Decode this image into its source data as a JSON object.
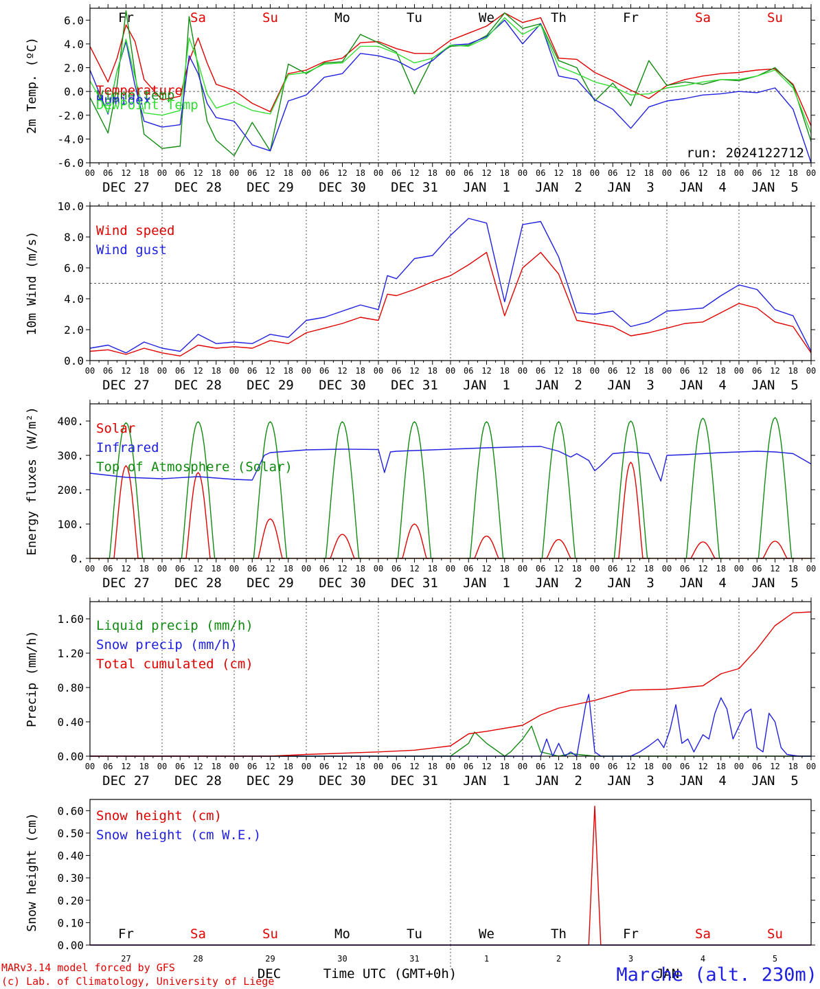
{
  "days": [
    "DEC 27",
    "DEC 28",
    "DEC 29",
    "DEC 30",
    "DEC 31",
    "JAN  1",
    "JAN  2",
    "JAN  3",
    "JAN  4",
    "JAN  5"
  ],
  "hour_ticks": [
    "00",
    "06",
    "12",
    "18"
  ],
  "hour_tick_end": "00",
  "weekdays": [
    {
      "label": "Fr",
      "color": "#000000"
    },
    {
      "label": "Sa",
      "color": "#e00000"
    },
    {
      "label": "Su",
      "color": "#e00000"
    },
    {
      "label": "Mo",
      "color": "#000000"
    },
    {
      "label": "Tu",
      "color": "#000000"
    },
    {
      "label": "We",
      "color": "#000000"
    },
    {
      "label": "Th",
      "color": "#000000"
    },
    {
      "label": "Fr",
      "color": "#000000"
    },
    {
      "label": "Sa",
      "color": "#e00000"
    },
    {
      "label": "Su",
      "color": "#e00000"
    }
  ],
  "bottom_day_numbers": [
    "27",
    "28",
    "29",
    "30",
    "31",
    "1",
    "2",
    "3",
    "4",
    "5"
  ],
  "bottom_month_dec": "DEC",
  "bottom_month_jan": "JAN",
  "x_axis_title": "Time UTC (GMT+0h)",
  "footer": {
    "line1": "MARv3.14 model forced by GFS",
    "line2": "(c) Lab. of Climatology, University of Liege",
    "station": "Marche (alt. 230m)"
  },
  "colors": {
    "red": "#e00000",
    "green": "#108a10",
    "blue": "#2020e0",
    "lightgreen": "#33dd33"
  },
  "chart_data": [
    {
      "type": "line",
      "ylabel": "2m Temp. (ºC)",
      "ylim": [
        -6,
        7
      ],
      "yticks": [
        "-6.0",
        "-4.0",
        "-2.0",
        "0.0",
        "2.0",
        "4.0",
        "6.0"
      ],
      "ytick_values": [
        -6,
        -4,
        -2,
        0,
        2,
        4,
        6
      ],
      "ref_line": 0,
      "annotation": "run: 2024122712",
      "x_hours": [
        0,
        6,
        9,
        12,
        15,
        18,
        24,
        30,
        33,
        36,
        39,
        42,
        48,
        54,
        60,
        66,
        72,
        78,
        84,
        90,
        96,
        102,
        108,
        114,
        120,
        126,
        132,
        138,
        144,
        150,
        156,
        162,
        168,
        174,
        180,
        186,
        192,
        198,
        204,
        210,
        216,
        222,
        228,
        234,
        240
      ],
      "series": [
        {
          "name": "Temperature",
          "color": "red",
          "values": [
            3.8,
            0.8,
            2.8,
            5.6,
            4.2,
            1.0,
            -0.7,
            -0.4,
            2.6,
            4.5,
            2.4,
            0.6,
            0.1,
            -1.0,
            -1.7,
            1.5,
            1.8,
            2.5,
            2.8,
            4.1,
            4.2,
            3.6,
            3.2,
            3.2,
            4.3,
            4.9,
            5.5,
            6.6,
            5.8,
            6.2,
            2.8,
            2.7,
            1.6,
            0.9,
            0.1,
            -0.6,
            0.5,
            1.0,
            1.3,
            1.5,
            1.6,
            1.8,
            1.9,
            0.6,
            -2.9
          ]
        },
        {
          "name": "Vigne temp",
          "color": "green",
          "values": [
            -0.5,
            -3.5,
            0.5,
            6.8,
            1.5,
            -3.6,
            -4.8,
            -4.6,
            6.3,
            2.0,
            -2.5,
            -4.1,
            -5.4,
            -2.6,
            -5.0,
            2.3,
            1.5,
            2.4,
            2.5,
            4.8,
            4.1,
            3.3,
            -0.2,
            2.8,
            3.8,
            3.9,
            4.7,
            6.6,
            5.3,
            5.7,
            2.6,
            2.0,
            -0.8,
            0.7,
            -1.2,
            2.6,
            0.5,
            0.8,
            0.6,
            1.0,
            0.9,
            1.3,
            2.0,
            0.5,
            -4.2
          ]
        },
        {
          "name": "Humidex",
          "color": "blue",
          "values": [
            1.8,
            -1.9,
            1.7,
            4.2,
            0.5,
            -2.5,
            -3.0,
            -2.8,
            3.0,
            1.5,
            -1.0,
            -2.2,
            -2.5,
            -4.5,
            -5.0,
            -0.8,
            -0.3,
            1.2,
            1.5,
            3.2,
            3.0,
            2.6,
            1.8,
            2.6,
            3.9,
            4.0,
            4.6,
            6.0,
            4.0,
            5.7,
            1.3,
            1.0,
            -0.7,
            -1.5,
            -3.1,
            -1.3,
            -0.8,
            -0.6,
            -0.3,
            -0.2,
            0.0,
            -0.1,
            0.3,
            -1.5,
            -6.0
          ]
        },
        {
          "name": "DewPoint Temp",
          "color": "lightgreen",
          "values": [
            0.9,
            -1.8,
            1.7,
            4.4,
            1.2,
            -1.8,
            -2.0,
            -1.6,
            4.5,
            2.4,
            -0.2,
            -1.4,
            -0.9,
            -1.6,
            -1.9,
            1.4,
            1.6,
            2.3,
            2.4,
            3.8,
            3.8,
            3.2,
            2.4,
            2.8,
            3.9,
            3.8,
            4.5,
            6.2,
            4.8,
            5.6,
            2.1,
            1.5,
            0.8,
            0.4,
            -0.3,
            -0.2,
            0.3,
            0.5,
            0.8,
            1.0,
            1.0,
            1.3,
            1.8,
            0.3,
            -3.5
          ]
        }
      ]
    },
    {
      "type": "line",
      "ylabel": "10m Wind (m/s)",
      "ylim": [
        0,
        10
      ],
      "yticks": [
        "0.0",
        "2.0",
        "4.0",
        "6.0",
        "8.0",
        "10.0"
      ],
      "ytick_values": [
        0,
        2,
        4,
        6,
        8,
        10
      ],
      "ref_line": 5,
      "x_hours": [
        0,
        6,
        12,
        18,
        24,
        30,
        36,
        42,
        48,
        54,
        60,
        66,
        72,
        78,
        84,
        90,
        96,
        99,
        102,
        108,
        114,
        120,
        126,
        132,
        138,
        144,
        150,
        156,
        162,
        168,
        174,
        180,
        186,
        192,
        198,
        204,
        210,
        216,
        222,
        228,
        234,
        240
      ],
      "series": [
        {
          "name": "Wind speed",
          "color": "red",
          "values": [
            0.6,
            0.7,
            0.4,
            0.8,
            0.5,
            0.3,
            1.0,
            0.8,
            0.9,
            0.8,
            1.3,
            1.1,
            1.8,
            2.1,
            2.4,
            2.8,
            2.6,
            4.3,
            4.2,
            4.6,
            5.1,
            5.5,
            6.2,
            7.0,
            2.9,
            6.0,
            7.0,
            5.6,
            2.6,
            2.4,
            2.2,
            1.6,
            1.8,
            2.1,
            2.4,
            2.5,
            3.1,
            3.7,
            3.4,
            2.5,
            2.2,
            0.5
          ]
        },
        {
          "name": "Wind gust",
          "color": "blue",
          "values": [
            0.8,
            1.0,
            0.5,
            1.2,
            0.8,
            0.6,
            1.7,
            1.1,
            1.2,
            1.1,
            1.7,
            1.5,
            2.6,
            2.8,
            3.2,
            3.6,
            3.3,
            5.5,
            5.3,
            6.6,
            6.8,
            8.1,
            9.2,
            8.9,
            3.8,
            8.8,
            9.0,
            6.7,
            3.1,
            3.0,
            3.2,
            2.2,
            2.5,
            3.2,
            3.3,
            3.4,
            4.2,
            4.9,
            4.6,
            3.3,
            2.9,
            0.6
          ]
        }
      ]
    },
    {
      "type": "line",
      "ylabel": "Energy fluxes (W/m²)",
      "ylim": [
        0,
        450
      ],
      "yticks": [
        "0.",
        "100.",
        "200.",
        "300.",
        "400."
      ],
      "ytick_values": [
        0,
        100,
        200,
        300,
        400
      ],
      "diurnal_peak_hour": 12,
      "solar_peaks": [
        270,
        250,
        115,
        70,
        100,
        65,
        55,
        280,
        48,
        50
      ],
      "toa_peaks": [
        395,
        398,
        398,
        398,
        398,
        398,
        398,
        400,
        408,
        410
      ],
      "series": [
        {
          "name": "Solar",
          "color": "red"
        },
        {
          "name": "Infrared",
          "color": "blue",
          "x_hours": [
            0,
            12,
            24,
            36,
            48,
            54,
            58,
            60,
            66,
            72,
            84,
            96,
            98,
            100,
            102,
            108,
            120,
            132,
            144,
            150,
            156,
            160,
            162,
            166,
            168,
            170,
            174,
            180,
            186,
            190,
            192,
            198,
            204,
            210,
            216,
            222,
            228,
            234,
            240
          ],
          "values": [
            248,
            236,
            232,
            238,
            230,
            228,
            300,
            308,
            312,
            316,
            318,
            317,
            250,
            310,
            312,
            314,
            318,
            322,
            325,
            326,
            312,
            295,
            305,
            285,
            255,
            270,
            305,
            310,
            305,
            225,
            300,
            302,
            305,
            308,
            310,
            312,
            310,
            305,
            275
          ]
        },
        {
          "name": "Top of Atmosphere (Solar)",
          "color": "green"
        }
      ]
    },
    {
      "type": "line",
      "ylabel": "Precip (mm/h)",
      "ylim": [
        0,
        1.8
      ],
      "yticks": [
        "0.00",
        "0.40",
        "0.80",
        "1.20",
        "1.60"
      ],
      "ytick_values": [
        0,
        0.4,
        0.8,
        1.2,
        1.6
      ],
      "x_hours": [
        0,
        60,
        72,
        96,
        108,
        120,
        126,
        132,
        144,
        150,
        156,
        168,
        180,
        192,
        204,
        210,
        216,
        222,
        228,
        234,
        240
      ],
      "series": [
        {
          "name": "Liquid precip (mm/h)",
          "color": "green",
          "x_hours": [
            0,
            120,
            126,
            128,
            132,
            138,
            140,
            144,
            147,
            150,
            156,
            160,
            168,
            240
          ],
          "values": [
            0,
            0,
            0.15,
            0.28,
            0.15,
            0,
            0.05,
            0.2,
            0.35,
            0.05,
            0,
            0.03,
            0,
            0
          ]
        },
        {
          "name": "Snow precip (mm/h)",
          "color": "blue",
          "x_hours": [
            0,
            150,
            152,
            154,
            156,
            158,
            160,
            162,
            165,
            166,
            168,
            170,
            180,
            183,
            186,
            189,
            191,
            193,
            195,
            197,
            199,
            201,
            204,
            206,
            208,
            210,
            212,
            214,
            216,
            218,
            220,
            222,
            224,
            226,
            228,
            230,
            232,
            234,
            236,
            240
          ],
          "values": [
            0,
            0,
            0.2,
            0,
            0.15,
            0,
            0.05,
            0,
            0.6,
            0.72,
            0.05,
            0,
            0,
            0.05,
            0.12,
            0.2,
            0.1,
            0.3,
            0.6,
            0.15,
            0.2,
            0.05,
            0.25,
            0.2,
            0.5,
            0.68,
            0.55,
            0.2,
            0.35,
            0.5,
            0.55,
            0.1,
            0.05,
            0.5,
            0.4,
            0.1,
            0.02,
            0.01,
            0,
            0
          ]
        },
        {
          "name": "Total cumulated (cm)",
          "color": "red",
          "values": [
            0,
            0,
            0.02,
            0.05,
            0.07,
            0.12,
            0.26,
            0.29,
            0.36,
            0.48,
            0.56,
            0.65,
            0.77,
            0.78,
            0.82,
            0.96,
            1.02,
            1.25,
            1.52,
            1.67,
            1.68
          ]
        }
      ]
    },
    {
      "type": "line",
      "ylabel": "Snow height (cm)",
      "ylim": [
        0,
        0.65
      ],
      "yticks": [
        "0.00",
        "0.10",
        "0.20",
        "0.30",
        "0.40",
        "0.50",
        "0.60"
      ],
      "ytick_values": [
        0,
        0.1,
        0.2,
        0.3,
        0.4,
        0.5,
        0.6
      ],
      "x_hours": [
        0,
        166,
        168,
        170,
        240
      ],
      "series": [
        {
          "name": "Snow height (cm)",
          "color": "red",
          "values": [
            0,
            0,
            0.62,
            0,
            0
          ]
        },
        {
          "name": "Snow height (cm W.E.)",
          "color": "blue",
          "values": [
            0,
            0,
            0,
            0,
            0
          ]
        }
      ]
    }
  ]
}
